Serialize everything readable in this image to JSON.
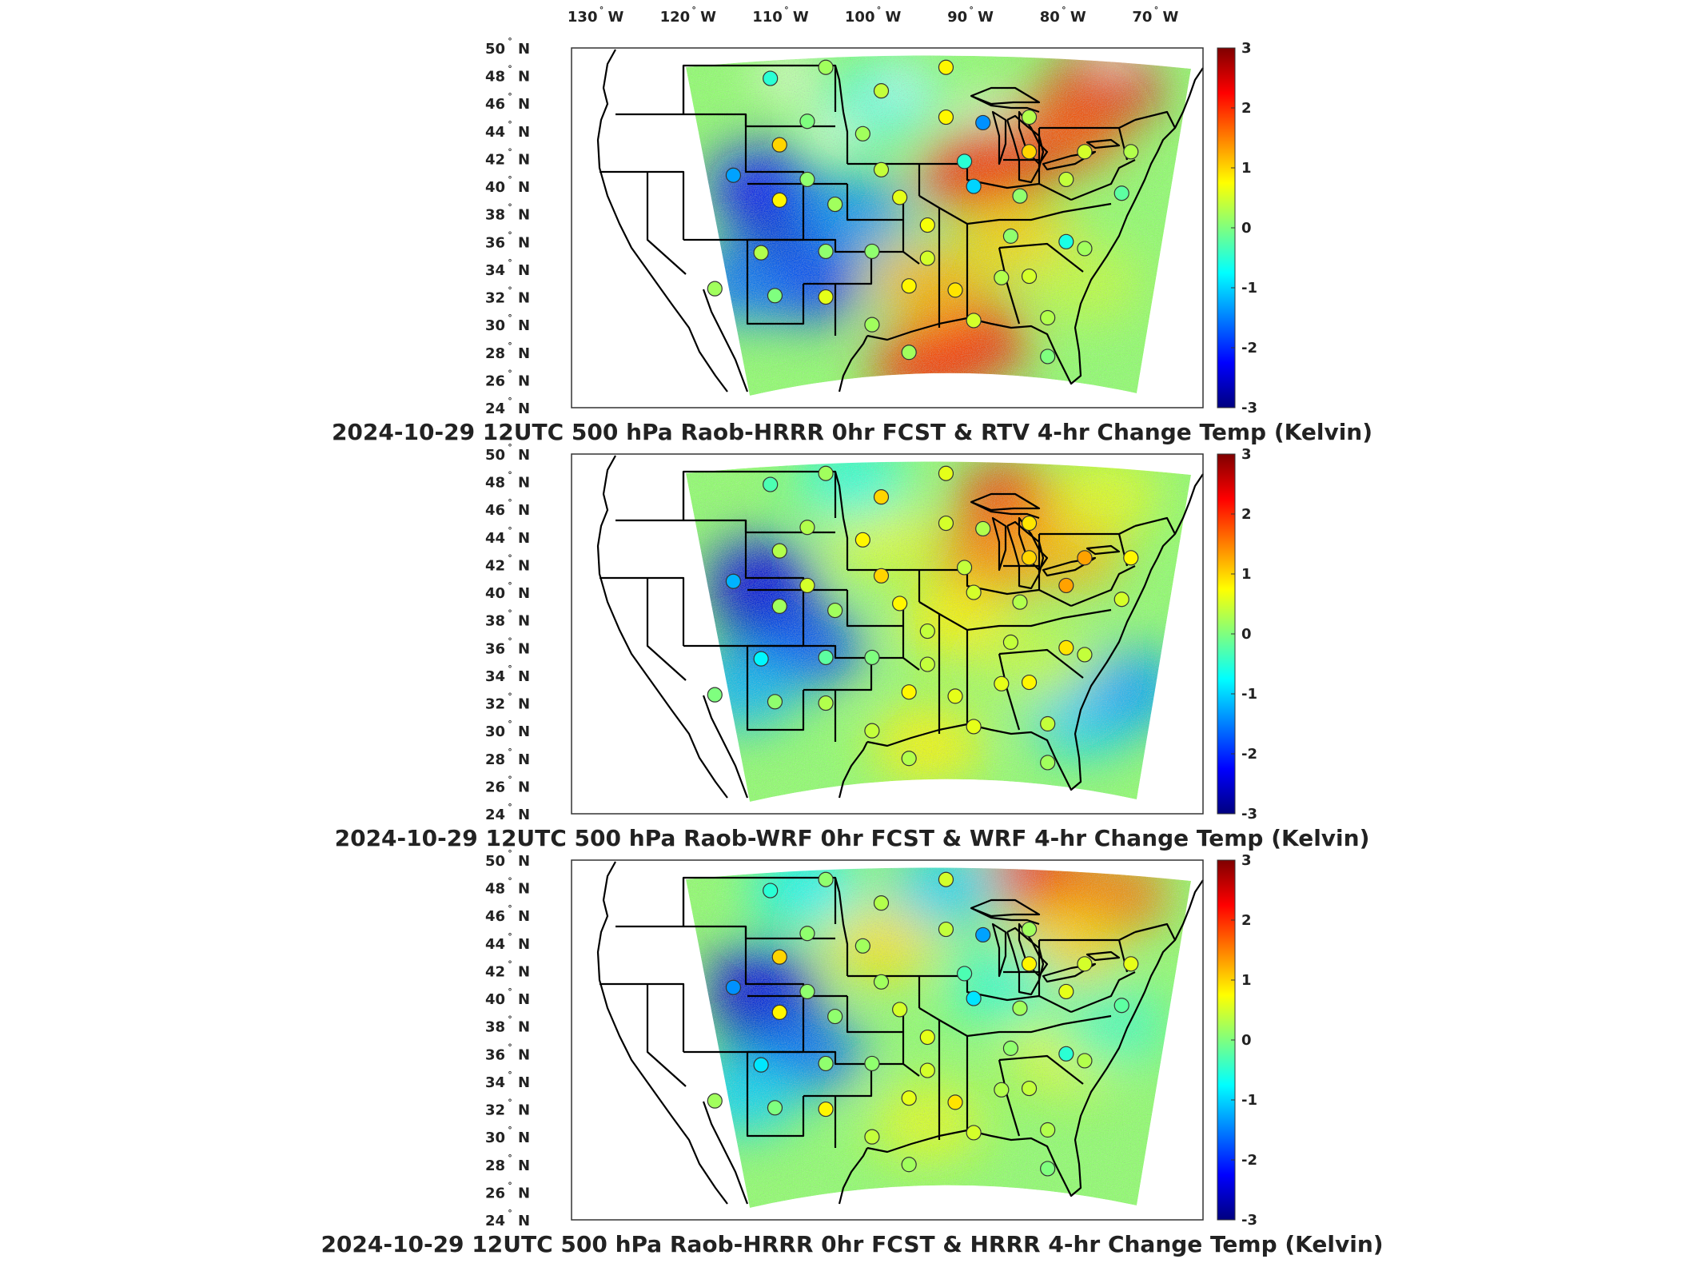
{
  "lon_labels": [
    "130",
    "120",
    "110",
    "100",
    "90",
    "80",
    "70"
  ],
  "lon_hemi": "W",
  "lat_labels": [
    "50",
    "48",
    "46",
    "44",
    "42",
    "40",
    "38",
    "36",
    "34",
    "32",
    "30",
    "28",
    "26",
    "24"
  ],
  "lat_hemi": "N",
  "degree_symbol": "°",
  "colorbar": {
    "ticks": [
      "3",
      "2",
      "1",
      "0",
      "-1",
      "-2",
      "-3"
    ],
    "range": [
      -3,
      3
    ],
    "colormap": [
      "#00007f",
      "#0000ff",
      "#00ffff",
      "#7fff7f",
      "#ffff00",
      "#ff0000",
      "#7f0000"
    ]
  },
  "panels": [
    {
      "title": "2024-10-29 12UTC 500 hPa Raob-HRRR 0hr FCST & RTV 4-hr Change Temp (Kelvin)",
      "field": "RTV",
      "blobs": [
        {
          "lon": -76,
          "lat": 47,
          "value": 2.4
        },
        {
          "lon": -86,
          "lat": 42,
          "value": 2.8
        },
        {
          "lon": -80,
          "lat": 44,
          "value": 1.8
        },
        {
          "lon": -90,
          "lat": 41,
          "value": 2.0
        },
        {
          "lon": -90,
          "lat": 29,
          "value": 2.2
        },
        {
          "lon": -95,
          "lat": 27,
          "value": 2.0
        },
        {
          "lon": -95,
          "lat": 33,
          "value": 1.2
        },
        {
          "lon": -110,
          "lat": 37,
          "value": -2.8
        },
        {
          "lon": -113,
          "lat": 40,
          "value": -2.2
        },
        {
          "lon": -108,
          "lat": 33,
          "value": -2.0
        },
        {
          "lon": -115,
          "lat": 33,
          "value": -1.6
        },
        {
          "lon": -103,
          "lat": 38,
          "value": -1.4
        },
        {
          "lon": -100,
          "lat": 46,
          "value": -0.5
        },
        {
          "lon": -85,
          "lat": 36,
          "value": 1.0
        },
        {
          "lon": -78,
          "lat": 33,
          "value": 0.4
        }
      ],
      "nodata": [
        {
          "lon": -105,
          "lat": 44,
          "value": 0
        },
        {
          "lon": -98,
          "lat": 47,
          "value": 0
        },
        {
          "lon": -88,
          "lat": 45,
          "value": 0
        },
        {
          "lon": -110,
          "lat": 48,
          "value": 0
        },
        {
          "lon": -75,
          "lat": 49,
          "value": 0
        }
      ],
      "stations": [
        {
          "lon": -112,
          "lat": 47.8,
          "value": -0.5
        },
        {
          "lon": -106,
          "lat": 48.6,
          "value": 0.2
        },
        {
          "lon": -100,
          "lat": 46.9,
          "value": 0.4
        },
        {
          "lon": -93,
          "lat": 48.6,
          "value": 0.8
        },
        {
          "lon": -108,
          "lat": 44.7,
          "value": 0.0
        },
        {
          "lon": -102,
          "lat": 43.8,
          "value": 0.2
        },
        {
          "lon": -93,
          "lat": 45,
          "value": 0.8
        },
        {
          "lon": -89,
          "lat": 44.6,
          "value": -1.4
        },
        {
          "lon": -84,
          "lat": 45,
          "value": 0.3
        },
        {
          "lon": -111,
          "lat": 43,
          "value": 1.0
        },
        {
          "lon": -84,
          "lat": 42.5,
          "value": 1.0
        },
        {
          "lon": -78,
          "lat": 42.5,
          "value": 0.5
        },
        {
          "lon": -73,
          "lat": 42.5,
          "value": 0.3
        },
        {
          "lon": -116,
          "lat": 40.8,
          "value": -1.3
        },
        {
          "lon": -108,
          "lat": 40.5,
          "value": 0.1
        },
        {
          "lon": -100,
          "lat": 41.2,
          "value": 0.4
        },
        {
          "lon": -91,
          "lat": 41.8,
          "value": -0.5
        },
        {
          "lon": -90,
          "lat": 40,
          "value": -1.0
        },
        {
          "lon": -85,
          "lat": 39.3,
          "value": 0.1
        },
        {
          "lon": -80,
          "lat": 40.5,
          "value": 0.4
        },
        {
          "lon": -74,
          "lat": 39.5,
          "value": -0.2
        },
        {
          "lon": -111,
          "lat": 39,
          "value": 0.8
        },
        {
          "lon": -105,
          "lat": 38.7,
          "value": 0.2
        },
        {
          "lon": -98,
          "lat": 39.2,
          "value": 0.6
        },
        {
          "lon": -95,
          "lat": 37.2,
          "value": 0.7
        },
        {
          "lon": -86,
          "lat": 36.4,
          "value": 0.1
        },
        {
          "lon": -80,
          "lat": 36,
          "value": -0.6
        },
        {
          "lon": -113,
          "lat": 35.2,
          "value": 0.3
        },
        {
          "lon": -106,
          "lat": 35.3,
          "value": 0.1
        },
        {
          "lon": -101,
          "lat": 35.3,
          "value": 0.1
        },
        {
          "lon": -95,
          "lat": 34.8,
          "value": 0.5
        },
        {
          "lon": -87,
          "lat": 33.4,
          "value": 0.3
        },
        {
          "lon": -84,
          "lat": 33.5,
          "value": 0.5
        },
        {
          "lon": -78,
          "lat": 35.5,
          "value": 0.2
        },
        {
          "lon": -118,
          "lat": 32.6,
          "value": 0.2
        },
        {
          "lon": -111.5,
          "lat": 32.1,
          "value": 0.0
        },
        {
          "lon": -106,
          "lat": 32,
          "value": 0.6
        },
        {
          "lon": -97,
          "lat": 32.8,
          "value": 0.8
        },
        {
          "lon": -92,
          "lat": 32.5,
          "value": 0.9
        },
        {
          "lon": -101,
          "lat": 30,
          "value": 0.2
        },
        {
          "lon": -90,
          "lat": 30.3,
          "value": 0.5
        },
        {
          "lon": -82,
          "lat": 30.5,
          "value": 0.3
        },
        {
          "lon": -97,
          "lat": 28,
          "value": 0.2
        },
        {
          "lon": -82,
          "lat": 27.7,
          "value": 0.0
        }
      ]
    },
    {
      "title": "2024-10-29 12UTC 500 hPa Raob-WRF 0hr FCST & WRF 4-hr Change Temp (Kelvin)",
      "field": "WRF",
      "blobs": [
        {
          "lon": -86,
          "lat": 46.5,
          "value": 2.0
        },
        {
          "lon": -88,
          "lat": 42.5,
          "value": 1.5
        },
        {
          "lon": -80,
          "lat": 43,
          "value": 1.2
        },
        {
          "lon": -76,
          "lat": 47,
          "value": 0.6
        },
        {
          "lon": -112,
          "lat": 38,
          "value": -2.8
        },
        {
          "lon": -113,
          "lat": 41,
          "value": -2.4
        },
        {
          "lon": -108,
          "lat": 36,
          "value": -1.8
        },
        {
          "lon": -115,
          "lat": 33,
          "value": -1.2
        },
        {
          "lon": -78,
          "lat": 31,
          "value": -1.0
        },
        {
          "lon": -73,
          "lat": 33,
          "value": -1.3
        },
        {
          "lon": -95,
          "lat": 29,
          "value": 0.8
        },
        {
          "lon": -100,
          "lat": 44,
          "value": 0.6
        },
        {
          "lon": -103,
          "lat": 48,
          "value": -0.6
        },
        {
          "lon": -92,
          "lat": 38,
          "value": 0.8
        },
        {
          "lon": -83,
          "lat": 35,
          "value": 0.4
        }
      ],
      "nodata": [],
      "stations": [
        {
          "lon": -112,
          "lat": 47.8,
          "value": -0.3
        },
        {
          "lon": -106,
          "lat": 48.6,
          "value": 0.2
        },
        {
          "lon": -100,
          "lat": 46.9,
          "value": 1.0
        },
        {
          "lon": -93,
          "lat": 48.6,
          "value": 0.6
        },
        {
          "lon": -108,
          "lat": 44.7,
          "value": 0.3
        },
        {
          "lon": -102,
          "lat": 43.8,
          "value": 0.8
        },
        {
          "lon": -93,
          "lat": 45,
          "value": 0.5
        },
        {
          "lon": -89,
          "lat": 44.6,
          "value": 0.3
        },
        {
          "lon": -84,
          "lat": 45,
          "value": 0.9
        },
        {
          "lon": -111,
          "lat": 43,
          "value": 0.3
        },
        {
          "lon": -84,
          "lat": 42.5,
          "value": 1.0
        },
        {
          "lon": -78,
          "lat": 42.5,
          "value": 1.3
        },
        {
          "lon": -73,
          "lat": 42.5,
          "value": 0.8
        },
        {
          "lon": -116,
          "lat": 40.8,
          "value": -1.2
        },
        {
          "lon": -108,
          "lat": 40.5,
          "value": 0.5
        },
        {
          "lon": -100,
          "lat": 41.2,
          "value": 1.0
        },
        {
          "lon": -91,
          "lat": 41.8,
          "value": 0.4
        },
        {
          "lon": -90,
          "lat": 40,
          "value": 0.5
        },
        {
          "lon": -85,
          "lat": 39.3,
          "value": 0.3
        },
        {
          "lon": -80,
          "lat": 40.5,
          "value": 1.3
        },
        {
          "lon": -74,
          "lat": 39.5,
          "value": 0.5
        },
        {
          "lon": -111,
          "lat": 39,
          "value": 0.2
        },
        {
          "lon": -105,
          "lat": 38.7,
          "value": 0.2
        },
        {
          "lon": -98,
          "lat": 39.2,
          "value": 0.8
        },
        {
          "lon": -95,
          "lat": 37.2,
          "value": 0.4
        },
        {
          "lon": -86,
          "lat": 36.4,
          "value": 0.4
        },
        {
          "lon": -80,
          "lat": 36,
          "value": 0.9
        },
        {
          "lon": -113,
          "lat": 35.2,
          "value": -0.8
        },
        {
          "lon": -106,
          "lat": 35.3,
          "value": -0.2
        },
        {
          "lon": -101,
          "lat": 35.3,
          "value": 0.0
        },
        {
          "lon": -95,
          "lat": 34.8,
          "value": 0.4
        },
        {
          "lon": -87,
          "lat": 33.4,
          "value": 0.6
        },
        {
          "lon": -84,
          "lat": 33.5,
          "value": 0.8
        },
        {
          "lon": -78,
          "lat": 35.5,
          "value": 0.4
        },
        {
          "lon": -118,
          "lat": 32.6,
          "value": 0.0
        },
        {
          "lon": -111.5,
          "lat": 32.1,
          "value": 0.1
        },
        {
          "lon": -106,
          "lat": 32,
          "value": 0.3
        },
        {
          "lon": -97,
          "lat": 32.8,
          "value": 0.8
        },
        {
          "lon": -92,
          "lat": 32.5,
          "value": 0.6
        },
        {
          "lon": -101,
          "lat": 30,
          "value": 0.4
        },
        {
          "lon": -90,
          "lat": 30.3,
          "value": 0.6
        },
        {
          "lon": -82,
          "lat": 30.5,
          "value": 0.4
        },
        {
          "lon": -97,
          "lat": 28,
          "value": 0.3
        },
        {
          "lon": -82,
          "lat": 27.7,
          "value": 0.2
        }
      ]
    },
    {
      "title": "2024-10-29 12UTC 500 hPa Raob-HRRR 0hr FCST & HRRR 4-hr Change Temp (Kelvin)",
      "field": "HRRR",
      "blobs": [
        {
          "lon": -83,
          "lat": 49,
          "value": 2.2
        },
        {
          "lon": -75,
          "lat": 47.5,
          "value": 1.6
        },
        {
          "lon": -80,
          "lat": 44,
          "value": 1.0
        },
        {
          "lon": -112,
          "lat": 38,
          "value": -2.8
        },
        {
          "lon": -113,
          "lat": 41,
          "value": -2.4
        },
        {
          "lon": -108,
          "lat": 36,
          "value": -1.6
        },
        {
          "lon": -115,
          "lat": 33,
          "value": -1.0
        },
        {
          "lon": -100,
          "lat": 44,
          "value": 0.9
        },
        {
          "lon": -95,
          "lat": 31,
          "value": 0.6
        },
        {
          "lon": -93,
          "lat": 48,
          "value": -1.0
        },
        {
          "lon": -87,
          "lat": 41,
          "value": -0.5
        },
        {
          "lon": -80,
          "lat": 36,
          "value": 0.6
        },
        {
          "lon": -108,
          "lat": 48,
          "value": -0.8
        },
        {
          "lon": -75,
          "lat": 38,
          "value": -0.4
        }
      ],
      "nodata": [],
      "stations": [
        {
          "lon": -112,
          "lat": 47.8,
          "value": -0.5
        },
        {
          "lon": -106,
          "lat": 48.6,
          "value": 0.1
        },
        {
          "lon": -100,
          "lat": 46.9,
          "value": 0.3
        },
        {
          "lon": -93,
          "lat": 48.6,
          "value": 0.5
        },
        {
          "lon": -108,
          "lat": 44.7,
          "value": 0.1
        },
        {
          "lon": -102,
          "lat": 43.8,
          "value": 0.2
        },
        {
          "lon": -93,
          "lat": 45,
          "value": 0.4
        },
        {
          "lon": -89,
          "lat": 44.6,
          "value": -1.3
        },
        {
          "lon": -84,
          "lat": 45,
          "value": 0.2
        },
        {
          "lon": -111,
          "lat": 43,
          "value": 1.0
        },
        {
          "lon": -84,
          "lat": 42.5,
          "value": 0.8
        },
        {
          "lon": -78,
          "lat": 42.5,
          "value": 0.5
        },
        {
          "lon": -73,
          "lat": 42.5,
          "value": 0.6
        },
        {
          "lon": -116,
          "lat": 40.8,
          "value": -1.4
        },
        {
          "lon": -108,
          "lat": 40.5,
          "value": 0.1
        },
        {
          "lon": -100,
          "lat": 41.2,
          "value": 0.2
        },
        {
          "lon": -91,
          "lat": 41.8,
          "value": -0.3
        },
        {
          "lon": -90,
          "lat": 40,
          "value": -0.9
        },
        {
          "lon": -85,
          "lat": 39.3,
          "value": 0.2
        },
        {
          "lon": -80,
          "lat": 40.5,
          "value": 0.6
        },
        {
          "lon": -74,
          "lat": 39.5,
          "value": -0.2
        },
        {
          "lon": -111,
          "lat": 39,
          "value": 0.8
        },
        {
          "lon": -105,
          "lat": 38.7,
          "value": 0.1
        },
        {
          "lon": -98,
          "lat": 39.2,
          "value": 0.5
        },
        {
          "lon": -95,
          "lat": 37.2,
          "value": 0.6
        },
        {
          "lon": -86,
          "lat": 36.4,
          "value": 0.1
        },
        {
          "lon": -80,
          "lat": 36,
          "value": -0.5
        },
        {
          "lon": -113,
          "lat": 35.2,
          "value": -0.9
        },
        {
          "lon": -106,
          "lat": 35.3,
          "value": 0.1
        },
        {
          "lon": -101,
          "lat": 35.3,
          "value": 0.1
        },
        {
          "lon": -95,
          "lat": 34.8,
          "value": 0.5
        },
        {
          "lon": -87,
          "lat": 33.4,
          "value": 0.3
        },
        {
          "lon": -84,
          "lat": 33.5,
          "value": 0.4
        },
        {
          "lon": -78,
          "lat": 35.5,
          "value": 0.3
        },
        {
          "lon": -118,
          "lat": 32.6,
          "value": 0.2
        },
        {
          "lon": -111.5,
          "lat": 32.1,
          "value": 0.0
        },
        {
          "lon": -106,
          "lat": 32,
          "value": 0.8
        },
        {
          "lon": -97,
          "lat": 32.8,
          "value": 0.6
        },
        {
          "lon": -92,
          "lat": 32.5,
          "value": 0.9
        },
        {
          "lon": -101,
          "lat": 30,
          "value": 0.4
        },
        {
          "lon": -90,
          "lat": 30.3,
          "value": 0.5
        },
        {
          "lon": -82,
          "lat": 30.5,
          "value": 0.3
        },
        {
          "lon": -97,
          "lat": 28,
          "value": 0.2
        },
        {
          "lon": -82,
          "lat": 27.7,
          "value": 0.0
        }
      ]
    }
  ]
}
